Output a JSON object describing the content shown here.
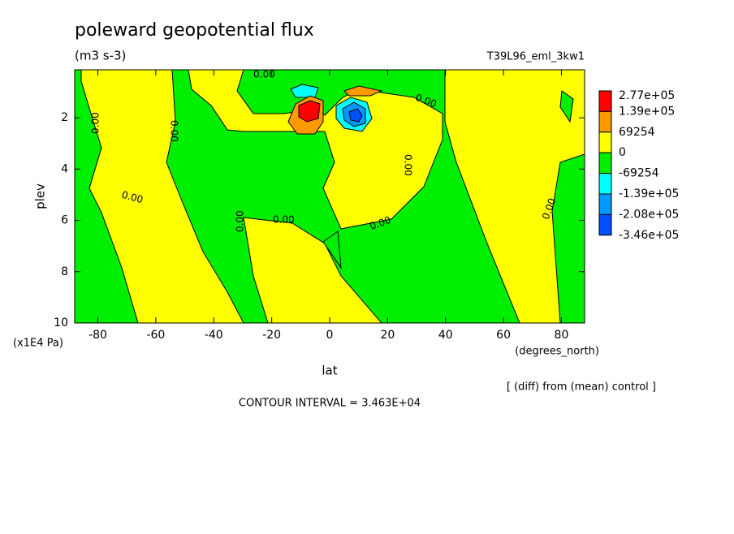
{
  "chart_data": {
    "type": "contour",
    "title": "poleward geopotential flux",
    "subtitle": "(m3 s-3)",
    "run_label": "T39L96_eml_3kw1",
    "x_label": "lat",
    "x_unit": "(degrees_north)",
    "y_label": "plev",
    "y_unit": "(x1E4 Pa)",
    "note": "[ (diff) from (mean) control ]",
    "contour_interval": "CONTOUR INTERVAL = 3.463E+04",
    "xlim": [
      -88,
      88
    ],
    "xticks": [
      -80,
      -60,
      -40,
      -20,
      0,
      20,
      40,
      60,
      80
    ],
    "ylim": [
      0.13,
      10
    ],
    "y_inverted": true,
    "yticks": [
      2,
      4,
      6,
      8,
      10
    ],
    "contour_labels": [
      "0.00",
      "0.00",
      "0.00",
      "0.00",
      "0.00",
      "0.00",
      "0.00",
      "0.00",
      "0.00",
      "0.00"
    ],
    "colorbar": {
      "levels": [
        {
          "value": 277000,
          "label": "2.77e+05"
        },
        {
          "value": 139000,
          "label": "1.39e+05"
        },
        69254,
        0,
        -69254,
        {
          "value": -139000,
          "label": "-1.39e+05"
        },
        {
          "value": -208000,
          "label": "-2.08e+05"
        },
        {
          "value": -346000,
          "label": "-3.46e+05"
        }
      ],
      "colors": [
        "#ff0000",
        "#ff9900",
        "#ffff00",
        "#00ee00",
        "#00ffff",
        "#0099ff",
        "#0050ff"
      ]
    }
  }
}
